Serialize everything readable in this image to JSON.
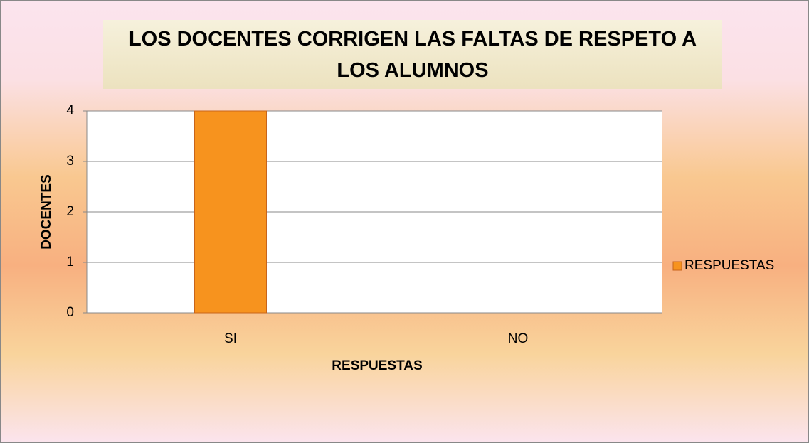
{
  "chart_data": {
    "type": "bar",
    "title": "LOS DOCENTES CORRIGEN LAS FALTAS DE RESPETO A LOS ALUMNOS",
    "x_label": "RESPUESTAS",
    "y_label": "DOCENTES",
    "categories": [
      "SI",
      "NO"
    ],
    "series": [
      {
        "name": "RESPUESTAS",
        "color": "#f7931e",
        "values": [
          4,
          0
        ]
      }
    ],
    "ylim": [
      0,
      4
    ],
    "yticks": [
      0,
      1,
      2,
      3,
      4
    ],
    "grid": true,
    "legend": "right"
  }
}
